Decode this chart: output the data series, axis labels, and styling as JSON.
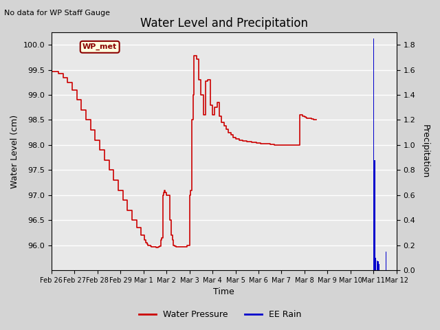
{
  "title": "Water Level and Precipitation",
  "subtitle": "No data for WP Staff Gauge",
  "xlabel": "Time",
  "ylabel_left": "Water Level (cm)",
  "ylabel_right": "Precipitation",
  "annotation_label": "WP_met",
  "legend_entries": [
    "Water Pressure",
    "EE Rain"
  ],
  "legend_colors": [
    "#cc0000",
    "#0000cc"
  ],
  "fig_facecolor": "#d4d4d4",
  "plot_facecolor": "#e8e8e8",
  "ylim_left": [
    95.5,
    100.25
  ],
  "ylim_right": [
    0.0,
    1.9
  ],
  "yticks_left": [
    96.0,
    96.5,
    97.0,
    97.5,
    98.0,
    98.5,
    99.0,
    99.5,
    100.0
  ],
  "yticks_right": [
    0.0,
    0.2,
    0.4,
    0.6,
    0.8,
    1.0,
    1.2,
    1.4,
    1.6,
    1.8
  ],
  "xlim": [
    0,
    15
  ],
  "xtick_positions": [
    0,
    1,
    2,
    3,
    4,
    5,
    6,
    7,
    8,
    9,
    10,
    11,
    12,
    13,
    14,
    15
  ],
  "xtick_labels": [
    "Feb 26",
    "Feb 27",
    "Feb 28",
    "Feb 29",
    "Mar 1",
    "Mar 2",
    "Mar 3",
    "Mar 4",
    "Mar 5",
    "Mar 6",
    "Mar 7",
    "Mar 8",
    "Mar 9",
    "Mar 10",
    "Mar 11",
    "Mar 12"
  ],
  "water_level_x": [
    0.0,
    0.15,
    0.3,
    0.5,
    0.7,
    0.9,
    1.1,
    1.3,
    1.5,
    1.7,
    1.9,
    2.1,
    2.3,
    2.5,
    2.7,
    2.9,
    3.1,
    3.3,
    3.5,
    3.7,
    3.9,
    4.05,
    4.1,
    4.15,
    4.2,
    4.25,
    4.3,
    4.35,
    4.4,
    4.45,
    4.5,
    4.55,
    4.6,
    4.65,
    4.7,
    4.75,
    4.8,
    4.85,
    4.87,
    4.9,
    4.95,
    5.0,
    5.05,
    5.1,
    5.15,
    5.2,
    5.25,
    5.3,
    5.35,
    5.4,
    5.5,
    5.6,
    5.7,
    5.8,
    5.9,
    6.0,
    6.05,
    6.1,
    6.15,
    6.2,
    6.3,
    6.4,
    6.5,
    6.6,
    6.7,
    6.8,
    6.9,
    7.0,
    7.1,
    7.2,
    7.3,
    7.4,
    7.5,
    7.6,
    7.7,
    7.8,
    7.9,
    8.0,
    8.15,
    8.3,
    8.5,
    8.7,
    8.9,
    9.1,
    9.3,
    9.5,
    9.7,
    9.9,
    10.1,
    10.3,
    10.5,
    10.7,
    10.8,
    10.85,
    10.9,
    10.95,
    11.0,
    11.05,
    11.1,
    11.2,
    11.3,
    11.4,
    11.5
  ],
  "water_level_y": [
    99.47,
    99.47,
    99.42,
    99.35,
    99.25,
    99.1,
    98.9,
    98.7,
    98.5,
    98.3,
    98.1,
    97.9,
    97.7,
    97.5,
    97.3,
    97.1,
    96.9,
    96.7,
    96.5,
    96.35,
    96.2,
    96.1,
    96.05,
    96.02,
    96.0,
    95.99,
    95.98,
    95.97,
    95.97,
    95.97,
    95.97,
    95.96,
    95.96,
    95.97,
    95.98,
    96.1,
    96.15,
    97.0,
    97.05,
    97.1,
    97.05,
    97.0,
    97.0,
    97.0,
    96.5,
    96.2,
    96.1,
    96.0,
    95.98,
    95.97,
    95.97,
    95.97,
    95.97,
    95.97,
    96.0,
    97.0,
    97.1,
    98.5,
    99.0,
    99.78,
    99.72,
    99.3,
    99.0,
    98.6,
    99.28,
    99.3,
    98.8,
    98.6,
    98.75,
    98.85,
    98.58,
    98.45,
    98.38,
    98.32,
    98.25,
    98.2,
    98.15,
    98.12,
    98.1,
    98.08,
    98.07,
    98.05,
    98.04,
    98.03,
    98.02,
    98.01,
    98.0,
    98.0,
    98.0,
    98.0,
    98.0,
    98.0,
    98.6,
    98.6,
    98.58,
    98.57,
    98.56,
    98.55,
    98.54,
    98.53,
    98.52,
    98.51,
    98.5
  ],
  "rain_bars": [
    {
      "x": 14.0,
      "height": 1.85
    },
    {
      "x": 14.05,
      "height": 0.88
    },
    {
      "x": 14.1,
      "height": 0.1
    },
    {
      "x": 14.15,
      "height": 0.08
    },
    {
      "x": 14.2,
      "height": 0.07
    },
    {
      "x": 14.25,
      "height": 0.05
    },
    {
      "x": 14.55,
      "height": 0.15
    }
  ],
  "rain_bar_width": 0.04
}
